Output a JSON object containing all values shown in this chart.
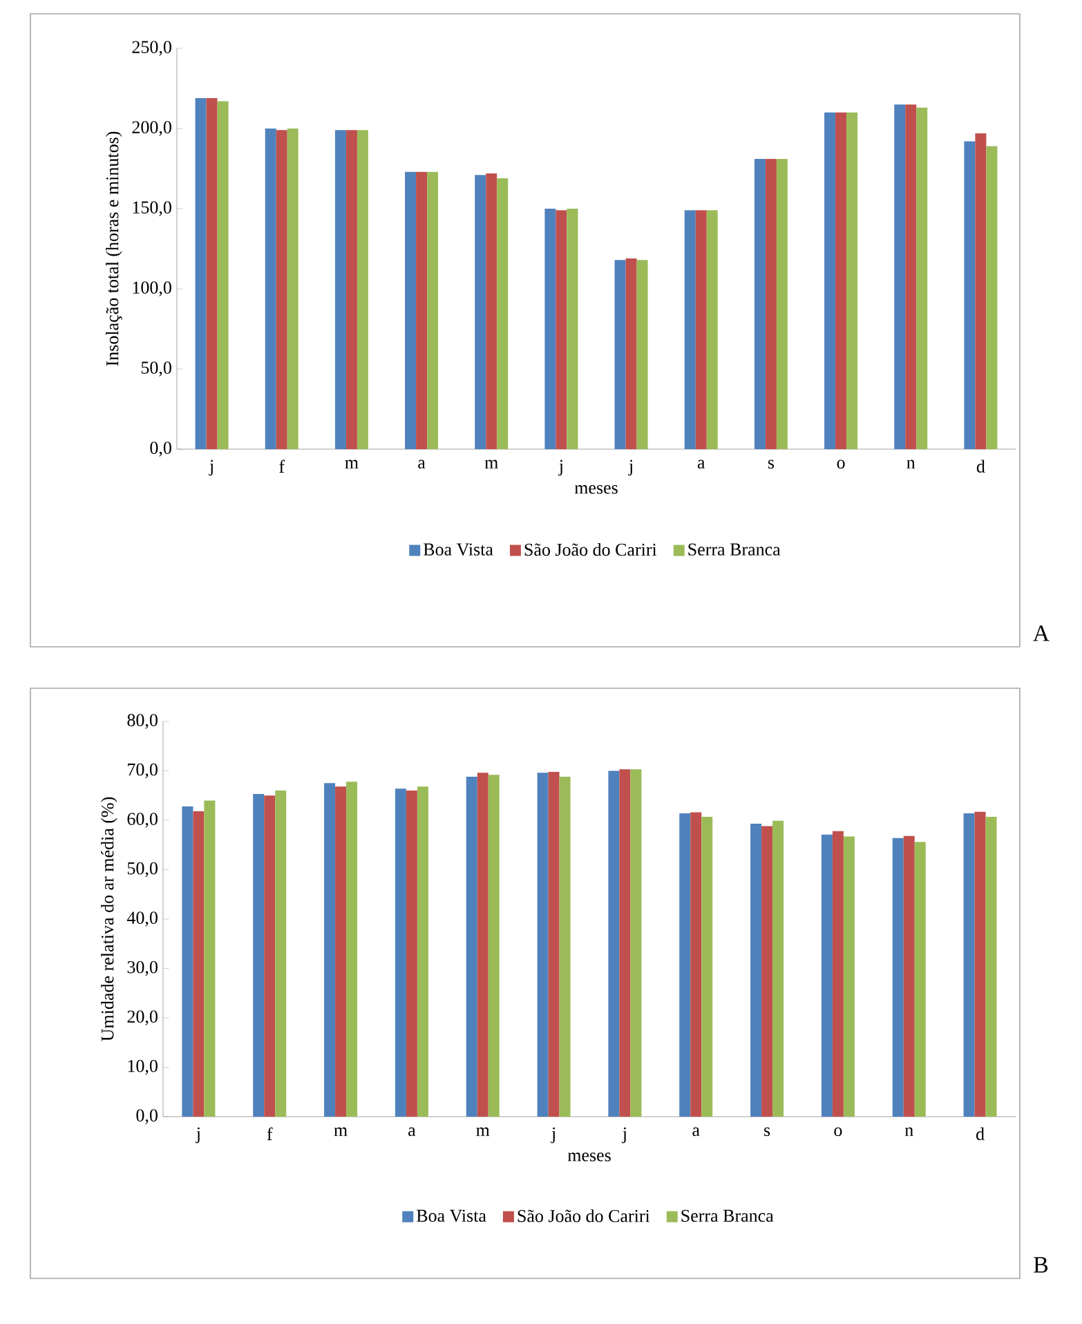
{
  "chart_data": [
    {
      "type": "bar",
      "xlabel": "meses",
      "ylabel": "Insolação total (horas e minutos)",
      "categories": [
        "j",
        "f",
        "m",
        "a",
        "m",
        "j",
        "j",
        "a",
        "s",
        "o",
        "n",
        "d"
      ],
      "series": [
        {
          "name": "Boa Vista",
          "color": "#4f81bd",
          "values": [
            219,
            200,
            199,
            173,
            171,
            150,
            118,
            149,
            181,
            210,
            215,
            192
          ]
        },
        {
          "name": "São João do Cariri",
          "color": "#c0504d",
          "values": [
            219,
            199,
            199,
            173,
            172,
            149,
            119,
            149,
            181,
            210,
            215,
            197
          ]
        },
        {
          "name": "Serra Branca",
          "color": "#9bbb59",
          "values": [
            217,
            200,
            199,
            173,
            169,
            150,
            118,
            149,
            181,
            210,
            213,
            189
          ]
        }
      ],
      "ylim": [
        0,
        250
      ],
      "yticks": [
        {
          "value": 0,
          "label": "0,0"
        },
        {
          "value": 50,
          "label": "50,0"
        },
        {
          "value": 100,
          "label": "100,0"
        },
        {
          "value": 150,
          "label": "150,0"
        },
        {
          "value": 200,
          "label": "200,0"
        },
        {
          "value": 250,
          "label": "250,0"
        }
      ],
      "legend": "bottom",
      "grid": false,
      "annotations": [
        "A"
      ]
    },
    {
      "type": "bar",
      "xlabel": "meses",
      "ylabel": "Umidade relativa do ar média (%)",
      "categories": [
        "j",
        "f",
        "m",
        "a",
        "m",
        "j",
        "j",
        "a",
        "s",
        "o",
        "n",
        "d"
      ],
      "series": [
        {
          "name": "Boa Vista",
          "color": "#4f81bd",
          "values": [
            62.8,
            65.3,
            67.5,
            66.4,
            68.8,
            69.6,
            70.0,
            61.4,
            59.3,
            57.1,
            56.4,
            61.4
          ]
        },
        {
          "name": "São João do Cariri",
          "color": "#c0504d",
          "values": [
            61.8,
            65.0,
            66.8,
            66.0,
            69.6,
            69.8,
            70.3,
            61.6,
            58.8,
            57.8,
            56.8,
            61.7
          ]
        },
        {
          "name": "Serra Branca",
          "color": "#9bbb59",
          "values": [
            64.0,
            66.0,
            67.8,
            66.8,
            69.2,
            68.8,
            70.3,
            60.7,
            59.9,
            56.7,
            55.6,
            60.7
          ]
        }
      ],
      "ylim": [
        0,
        80
      ],
      "yticks": [
        {
          "value": 0,
          "label": "0,0"
        },
        {
          "value": 10,
          "label": "10,0"
        },
        {
          "value": 20,
          "label": "20,0"
        },
        {
          "value": 30,
          "label": "30,0"
        },
        {
          "value": 40,
          "label": "40,0"
        },
        {
          "value": 50,
          "label": "50,0"
        },
        {
          "value": 60,
          "label": "60,0"
        },
        {
          "value": 70,
          "label": "70,0"
        },
        {
          "value": 80,
          "label": "80,0"
        }
      ],
      "legend": "bottom",
      "grid": false,
      "annotations": [
        "B"
      ]
    }
  ]
}
